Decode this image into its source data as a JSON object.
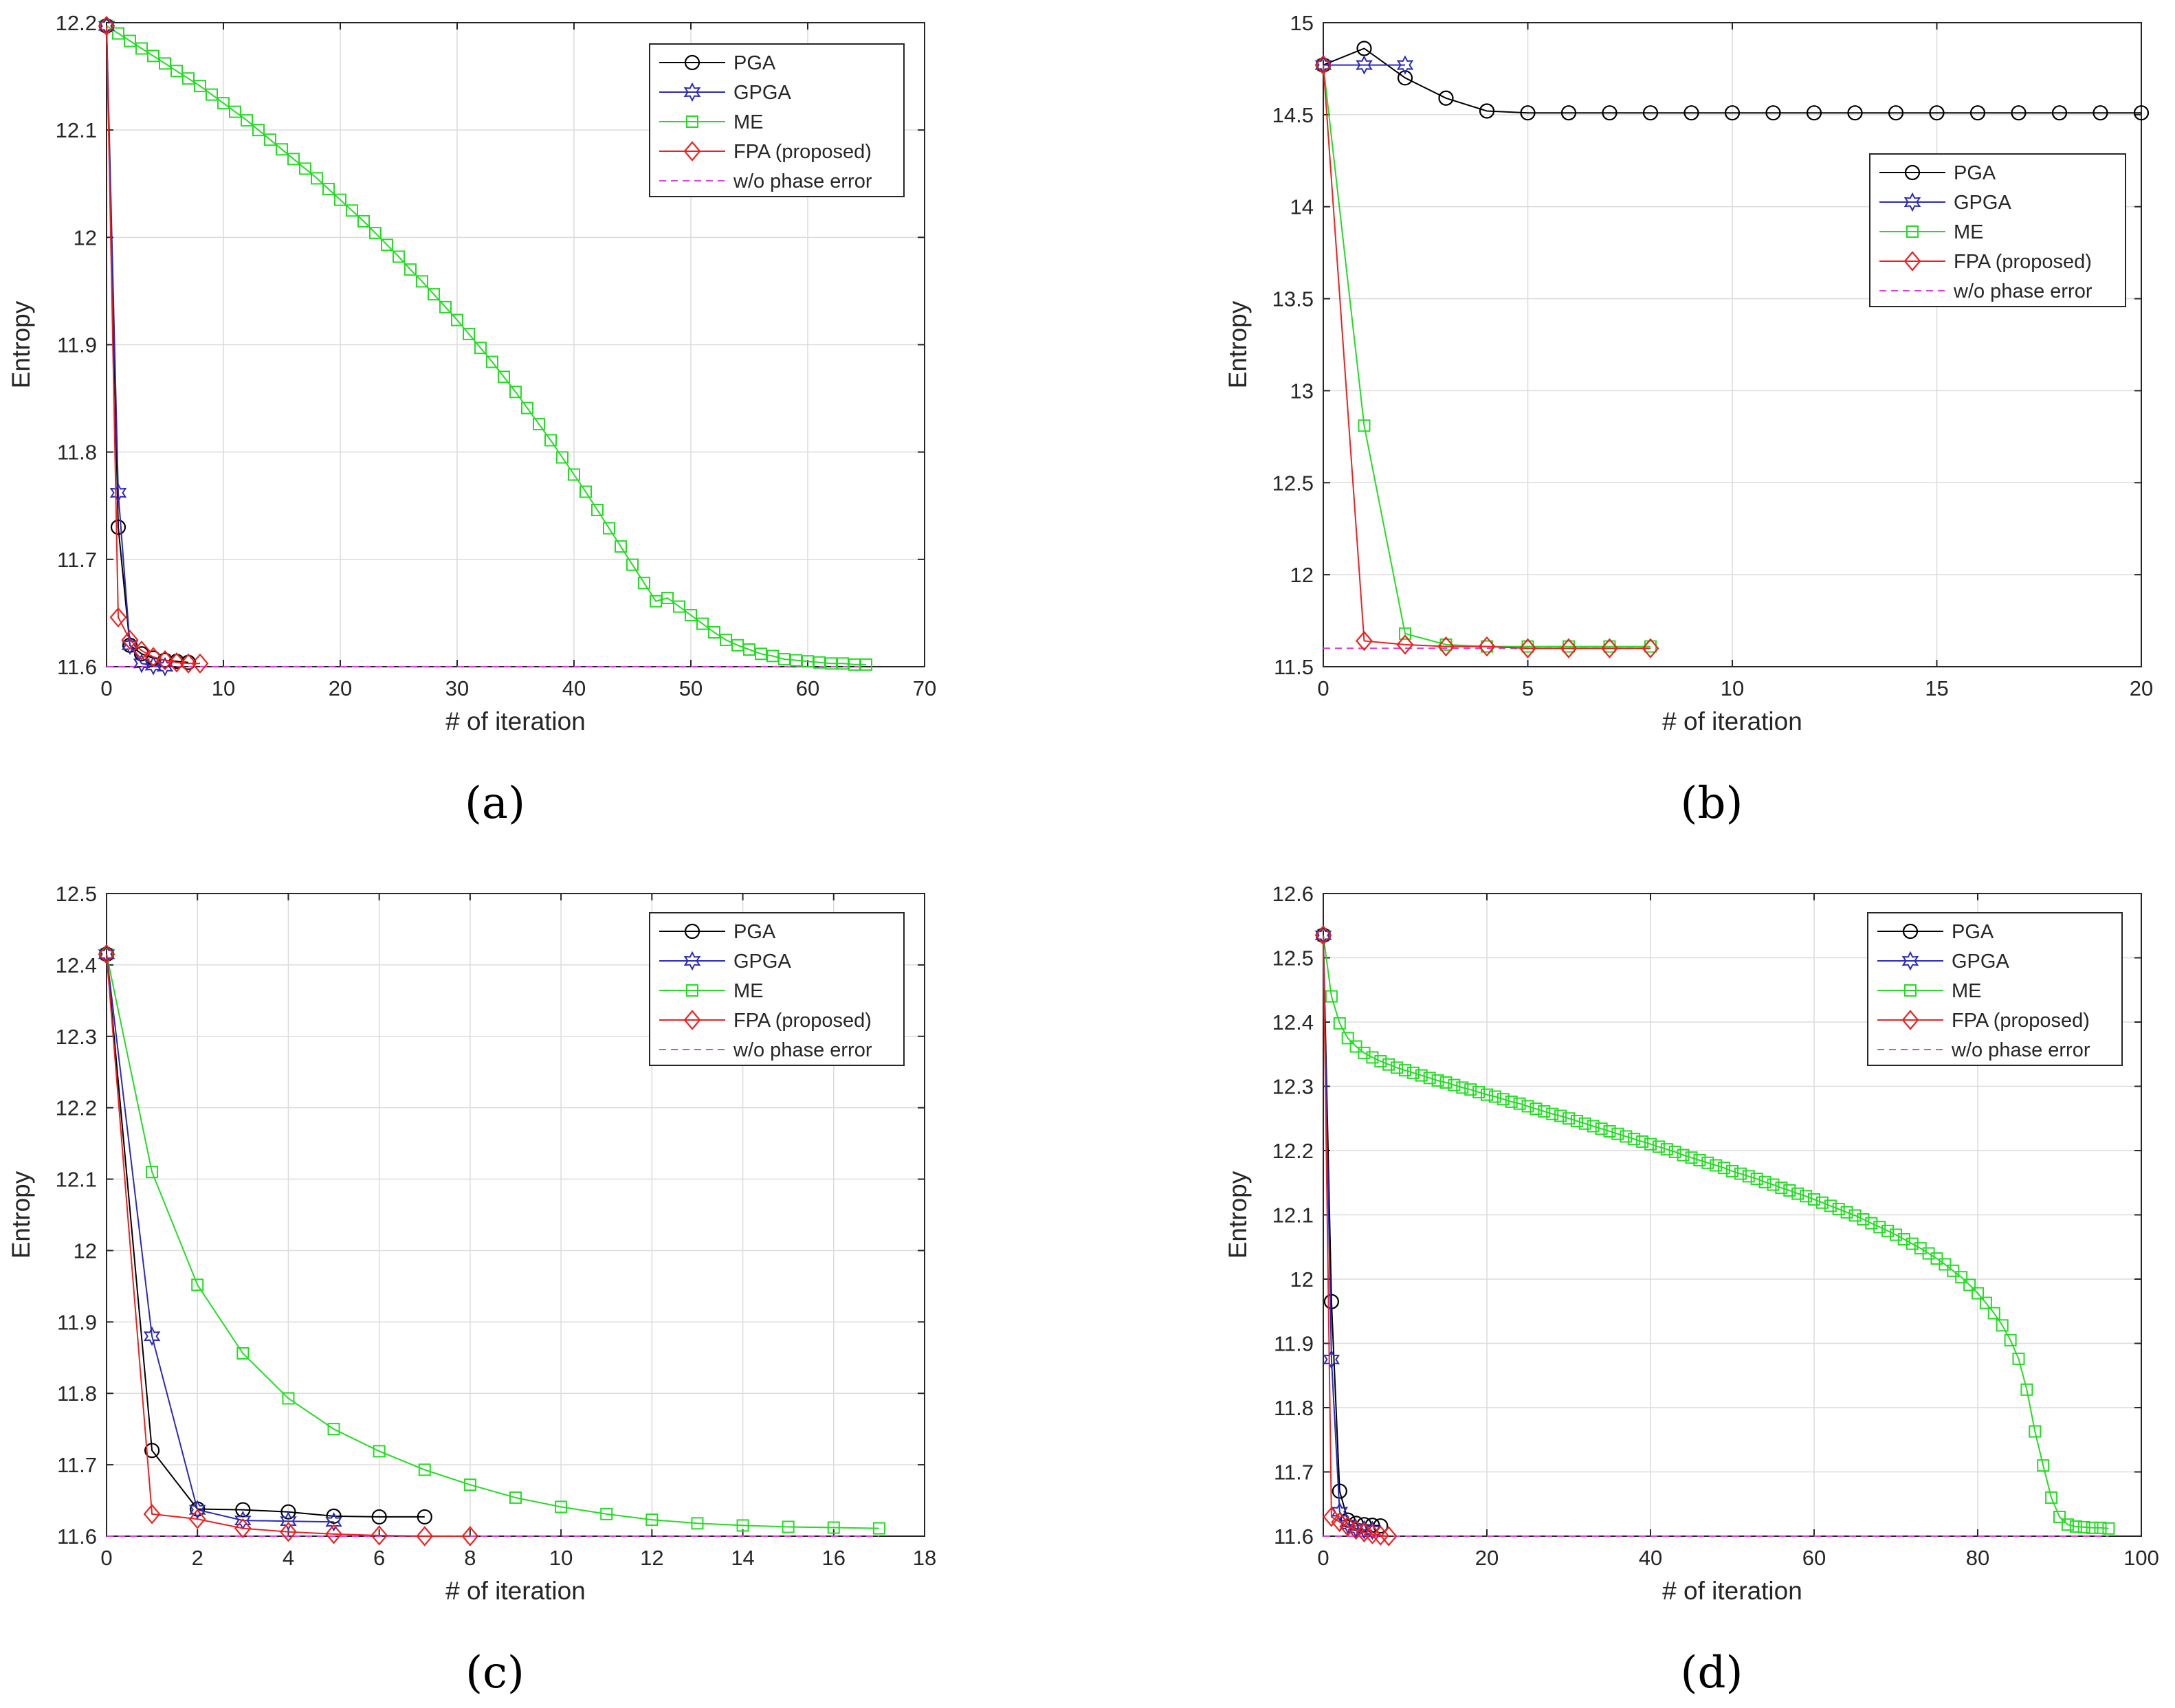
{
  "panel_labels": [
    "(a)",
    "(b)",
    "(c)",
    "(d)"
  ],
  "chart_data": [
    {
      "type": "line",
      "panel": "a",
      "xlabel": "# of iteration",
      "ylabel": "Entropy",
      "xlim": [
        0,
        70
      ],
      "ylim": [
        11.6,
        12.2
      ],
      "xticks": [
        0,
        10,
        20,
        30,
        40,
        50,
        60,
        70
      ],
      "yticks": [
        11.6,
        11.7,
        11.8,
        11.9,
        12,
        12.1,
        12.2
      ],
      "grid": true,
      "legend_position": "top-right",
      "series": [
        {
          "name": "PGA",
          "x": [
            0,
            1,
            2,
            3,
            4,
            5,
            6,
            7
          ],
          "y": [
            12.197,
            11.73,
            11.62,
            11.612,
            11.608,
            11.606,
            11.605,
            11.604
          ]
        },
        {
          "name": "GPGA",
          "x": [
            0,
            1,
            2,
            3,
            4,
            5
          ],
          "y": [
            12.197,
            11.762,
            11.62,
            11.603,
            11.601,
            11.6
          ]
        },
        {
          "name": "ME",
          "x": [
            0,
            1,
            2,
            3,
            4,
            5,
            6,
            7,
            8,
            9,
            10,
            11,
            12,
            13,
            14,
            15,
            16,
            17,
            18,
            19,
            20,
            21,
            22,
            23,
            24,
            25,
            26,
            27,
            28,
            29,
            30,
            31,
            32,
            33,
            34,
            35,
            36,
            37,
            38,
            39,
            40,
            41,
            42,
            43,
            44,
            45,
            46,
            47,
            48,
            49,
            50,
            51,
            52,
            53,
            54,
            55,
            56,
            57,
            58,
            59,
            60,
            61,
            62,
            63,
            64,
            65
          ],
          "y": [
            12.197,
            12.19,
            12.183,
            12.176,
            12.169,
            12.162,
            12.155,
            12.148,
            12.141,
            12.133,
            12.125,
            12.117,
            12.109,
            12.1,
            12.091,
            12.082,
            12.073,
            12.064,
            12.055,
            12.045,
            12.035,
            12.025,
            12.015,
            12.004,
            11.993,
            11.982,
            11.97,
            11.959,
            11.947,
            11.935,
            11.923,
            11.91,
            11.897,
            11.884,
            11.87,
            11.856,
            11.841,
            11.826,
            11.811,
            11.795,
            11.779,
            11.763,
            11.746,
            11.729,
            11.712,
            11.695,
            11.678,
            11.661,
            11.664,
            11.656,
            11.648,
            11.64,
            11.632,
            11.625,
            11.62,
            11.616,
            11.612,
            11.61,
            11.607,
            11.606,
            11.605,
            11.604,
            11.603,
            11.603,
            11.602,
            11.602
          ]
        },
        {
          "name": "FPA (proposed)",
          "x": [
            0,
            1,
            2,
            3,
            4,
            5,
            6,
            7,
            8
          ],
          "y": [
            12.197,
            11.646,
            11.625,
            11.615,
            11.609,
            11.606,
            11.604,
            11.603,
            11.603
          ]
        },
        {
          "name": "w/o phase error",
          "x": [
            0,
            65
          ],
          "y": [
            11.6,
            11.6
          ],
          "dashed": true
        }
      ]
    },
    {
      "type": "line",
      "panel": "b",
      "xlabel": "# of iteration",
      "ylabel": "Entropy",
      "xlim": [
        0,
        20
      ],
      "ylim": [
        11.5,
        15
      ],
      "xticks": [
        0,
        5,
        10,
        15,
        20
      ],
      "yticks": [
        11.5,
        12,
        12.5,
        13,
        13.5,
        14,
        14.5,
        15
      ],
      "grid": true,
      "legend_position": "top-right",
      "series": [
        {
          "name": "PGA",
          "x": [
            0,
            1,
            2,
            3,
            4,
            5,
            6,
            7,
            8,
            9,
            10,
            11,
            12,
            13,
            14,
            15,
            16,
            17,
            18,
            19,
            20
          ],
          "y": [
            14.77,
            14.86,
            14.7,
            14.59,
            14.52,
            14.51,
            14.51,
            14.51,
            14.51,
            14.51,
            14.51,
            14.51,
            14.51,
            14.51,
            14.51,
            14.51,
            14.51,
            14.51,
            14.51,
            14.51,
            14.51
          ]
        },
        {
          "name": "GPGA",
          "x": [
            0,
            1,
            2
          ],
          "y": [
            14.77,
            14.77,
            14.77
          ]
        },
        {
          "name": "ME",
          "x": [
            0,
            1,
            2,
            3,
            4,
            5,
            6,
            7,
            8
          ],
          "y": [
            14.77,
            12.81,
            11.68,
            11.62,
            11.61,
            11.61,
            11.61,
            11.61,
            11.61
          ]
        },
        {
          "name": "FPA (proposed)",
          "x": [
            0,
            1,
            2,
            3,
            4,
            5,
            6,
            7,
            8
          ],
          "y": [
            14.77,
            11.64,
            11.62,
            11.61,
            11.61,
            11.6,
            11.6,
            11.6,
            11.6
          ]
        },
        {
          "name": "w/o phase error",
          "x": [
            0,
            8
          ],
          "y": [
            11.6,
            11.6
          ],
          "dashed": true
        }
      ]
    },
    {
      "type": "line",
      "panel": "c",
      "xlabel": "# of iteration",
      "ylabel": "Entropy",
      "xlim": [
        0,
        18
      ],
      "ylim": [
        11.6,
        12.5
      ],
      "xticks": [
        0,
        2,
        4,
        6,
        8,
        10,
        12,
        14,
        16,
        18
      ],
      "yticks": [
        11.6,
        11.7,
        11.8,
        11.9,
        12,
        12.1,
        12.2,
        12.3,
        12.4,
        12.5
      ],
      "grid": true,
      "legend_position": "top-right",
      "series": [
        {
          "name": "PGA",
          "x": [
            0,
            1,
            2,
            3,
            4,
            5,
            6,
            7
          ],
          "y": [
            12.415,
            11.72,
            11.638,
            11.637,
            11.634,
            11.628,
            11.627,
            11.627
          ]
        },
        {
          "name": "GPGA",
          "x": [
            0,
            1,
            2,
            3,
            4,
            5
          ],
          "y": [
            12.415,
            11.88,
            11.637,
            11.622,
            11.621,
            11.62
          ]
        },
        {
          "name": "ME",
          "x": [
            0,
            1,
            2,
            3,
            4,
            5,
            6,
            7,
            8,
            9,
            10,
            11,
            12,
            13,
            14,
            15,
            16,
            17
          ],
          "y": [
            12.415,
            12.11,
            11.952,
            11.856,
            11.793,
            11.75,
            11.719,
            11.693,
            11.672,
            11.654,
            11.641,
            11.631,
            11.623,
            11.618,
            11.615,
            11.613,
            11.612,
            11.611
          ]
        },
        {
          "name": "FPA (proposed)",
          "x": [
            0,
            1,
            2,
            3,
            4,
            5,
            6,
            7,
            8
          ],
          "y": [
            12.415,
            11.631,
            11.624,
            11.611,
            11.606,
            11.603,
            11.601,
            11.6,
            11.6
          ]
        },
        {
          "name": "w/o phase error",
          "x": [
            0,
            17
          ],
          "y": [
            11.6,
            11.6
          ],
          "dashed": true
        }
      ]
    },
    {
      "type": "line",
      "panel": "d",
      "xlabel": "# of iteration",
      "ylabel": "Entropy",
      "xlim": [
        0,
        100
      ],
      "ylim": [
        11.6,
        12.6
      ],
      "xticks": [
        0,
        20,
        40,
        60,
        80,
        100
      ],
      "yticks": [
        11.6,
        11.7,
        11.8,
        11.9,
        12,
        12.1,
        12.2,
        12.3,
        12.4,
        12.5,
        12.6
      ],
      "grid": true,
      "legend_position": "top-right",
      "series": [
        {
          "name": "PGA",
          "x": [
            0,
            1,
            2,
            3,
            4,
            5,
            6,
            7
          ],
          "y": [
            12.535,
            11.965,
            11.67,
            11.625,
            11.62,
            11.618,
            11.617,
            11.616
          ]
        },
        {
          "name": "GPGA",
          "x": [
            0,
            1,
            2,
            3,
            4,
            5,
            6
          ],
          "y": [
            12.535,
            11.875,
            11.638,
            11.618,
            11.612,
            11.61,
            11.609
          ]
        },
        {
          "name": "ME",
          "x": [
            0,
            1,
            2,
            3,
            4,
            5,
            6,
            7,
            8,
            9,
            10,
            11,
            12,
            13,
            14,
            15,
            16,
            17,
            18,
            19,
            20,
            21,
            22,
            23,
            24,
            25,
            26,
            27,
            28,
            29,
            30,
            31,
            32,
            33,
            34,
            35,
            36,
            37,
            38,
            39,
            40,
            41,
            42,
            43,
            44,
            45,
            46,
            47,
            48,
            49,
            50,
            51,
            52,
            53,
            54,
            55,
            56,
            57,
            58,
            59,
            60,
            61,
            62,
            63,
            64,
            65,
            66,
            67,
            68,
            69,
            70,
            71,
            72,
            73,
            74,
            75,
            76,
            77,
            78,
            79,
            80,
            81,
            82,
            83,
            84,
            85,
            86,
            87,
            88,
            89,
            90,
            91,
            92,
            93,
            94,
            95,
            96
          ],
          "y": [
            12.535,
            12.44,
            12.398,
            12.375,
            12.362,
            12.352,
            12.345,
            12.339,
            12.334,
            12.329,
            12.325,
            12.321,
            12.317,
            12.313,
            12.309,
            12.306,
            12.302,
            12.298,
            12.295,
            12.291,
            12.287,
            12.284,
            12.28,
            12.276,
            12.273,
            12.269,
            12.265,
            12.261,
            12.257,
            12.254,
            12.25,
            12.246,
            12.242,
            12.238,
            12.234,
            12.23,
            12.226,
            12.222,
            12.218,
            12.214,
            12.21,
            12.206,
            12.202,
            12.198,
            12.193,
            12.189,
            12.185,
            12.181,
            12.177,
            12.173,
            12.168,
            12.164,
            12.16,
            12.156,
            12.151,
            12.147,
            12.142,
            12.138,
            12.133,
            12.129,
            12.124,
            12.119,
            12.114,
            12.109,
            12.104,
            12.099,
            12.093,
            12.087,
            12.081,
            12.075,
            12.069,
            12.062,
            12.055,
            12.048,
            12.04,
            12.032,
            12.023,
            12.013,
            12.003,
            11.991,
            11.978,
            11.963,
            11.947,
            11.928,
            11.905,
            11.876,
            11.828,
            11.763,
            11.71,
            11.66,
            11.63,
            11.618,
            11.615,
            11.614,
            11.613,
            11.613,
            11.612
          ]
        },
        {
          "name": "FPA (proposed)",
          "x": [
            0,
            1,
            2,
            3,
            4,
            5,
            6,
            7,
            8
          ],
          "y": [
            12.535,
            11.63,
            11.622,
            11.615,
            11.61,
            11.606,
            11.603,
            11.601,
            11.6
          ]
        },
        {
          "name": "w/o phase error",
          "x": [
            0,
            96
          ],
          "y": [
            11.6,
            11.6
          ],
          "dashed": true
        }
      ]
    }
  ],
  "colors": {
    "PGA": "#000000",
    "GPGA": "#2a2ab8",
    "ME": "#22dd22",
    "FPA (proposed)": "#ee2020",
    "w/o phase error": "#e040e0",
    "grid": "#dcdcdc",
    "axis": "#262626"
  },
  "markers": {
    "PGA": "circle",
    "GPGA": "hexagram",
    "ME": "square",
    "FPA (proposed)": "diamond",
    "w/o phase error": "none"
  }
}
